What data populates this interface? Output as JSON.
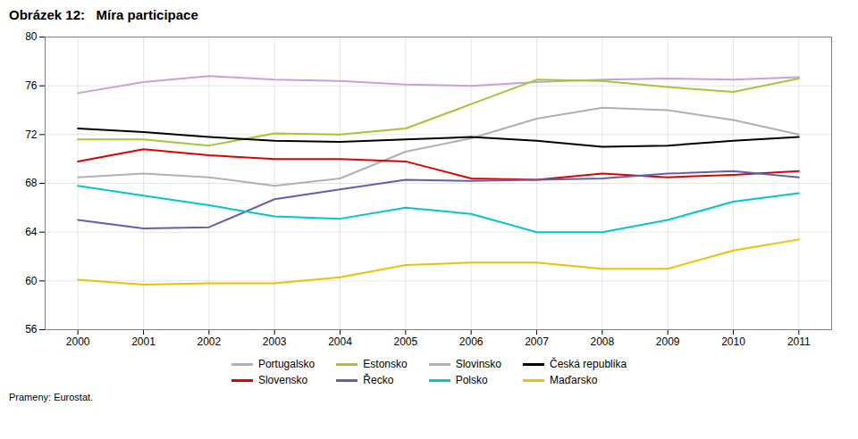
{
  "chart_data": {
    "type": "line",
    "title": "Obrázek 12:   Míra participace",
    "source": "Prameny: Eurostat.",
    "x": [
      2000,
      2001,
      2002,
      2003,
      2004,
      2005,
      2006,
      2007,
      2008,
      2009,
      2010,
      2011
    ],
    "series": [
      {
        "name": "Portugalsko",
        "color": "#c8a0d8",
        "values": [
          75.4,
          76.3,
          76.8,
          76.5,
          76.4,
          76.1,
          76.0,
          76.3,
          76.5,
          76.6,
          76.5,
          76.7
        ]
      },
      {
        "name": "Estonsko",
        "color": "#a0c832",
        "values": [
          71.6,
          71.6,
          71.1,
          72.1,
          72.0,
          72.5,
          74.5,
          76.5,
          76.4,
          75.9,
          75.5,
          76.6
        ]
      },
      {
        "name": "Slovinsko",
        "color": "#b0b0b0",
        "values": [
          68.5,
          68.8,
          68.5,
          67.8,
          68.4,
          70.6,
          71.7,
          73.3,
          74.2,
          74.0,
          73.2,
          72.0
        ]
      },
      {
        "name": "Česká republika",
        "color": "#000000",
        "values": [
          72.5,
          72.2,
          71.8,
          71.5,
          71.4,
          71.6,
          71.8,
          71.5,
          71.0,
          71.1,
          71.5,
          71.8
        ]
      },
      {
        "name": "Slovensko",
        "color": "#e00000",
        "values": [
          69.8,
          70.8,
          70.3,
          70.0,
          70.0,
          69.8,
          68.4,
          68.3,
          68.8,
          68.5,
          68.7,
          69.0
        ]
      },
      {
        "name": "Řecko",
        "color": "#6060b0",
        "values": [
          65.0,
          64.3,
          64.4,
          66.7,
          67.5,
          68.3,
          68.2,
          68.3,
          68.4,
          68.8,
          69.0,
          68.5
        ]
      },
      {
        "name": "Polsko",
        "color": "#00c8c8",
        "values": [
          67.8,
          67.0,
          66.2,
          65.3,
          65.1,
          66.0,
          65.5,
          64.0,
          64.0,
          65.0,
          66.5,
          67.2
        ]
      },
      {
        "name": "Maďarsko",
        "color": "#f0c000",
        "values": [
          60.1,
          59.7,
          59.8,
          59.8,
          60.3,
          61.3,
          61.5,
          61.5,
          61.0,
          61.0,
          62.5,
          63.4
        ]
      }
    ],
    "xlim": [
      1999.5,
      2011.5
    ],
    "xticks": [
      2000,
      2001,
      2002,
      2003,
      2004,
      2005,
      2006,
      2007,
      2008,
      2009,
      2010,
      2011
    ],
    "ylim": [
      56,
      80
    ],
    "yticks": [
      56,
      60,
      64,
      68,
      72,
      76,
      80
    ],
    "grid": true,
    "legend": "bottom"
  }
}
